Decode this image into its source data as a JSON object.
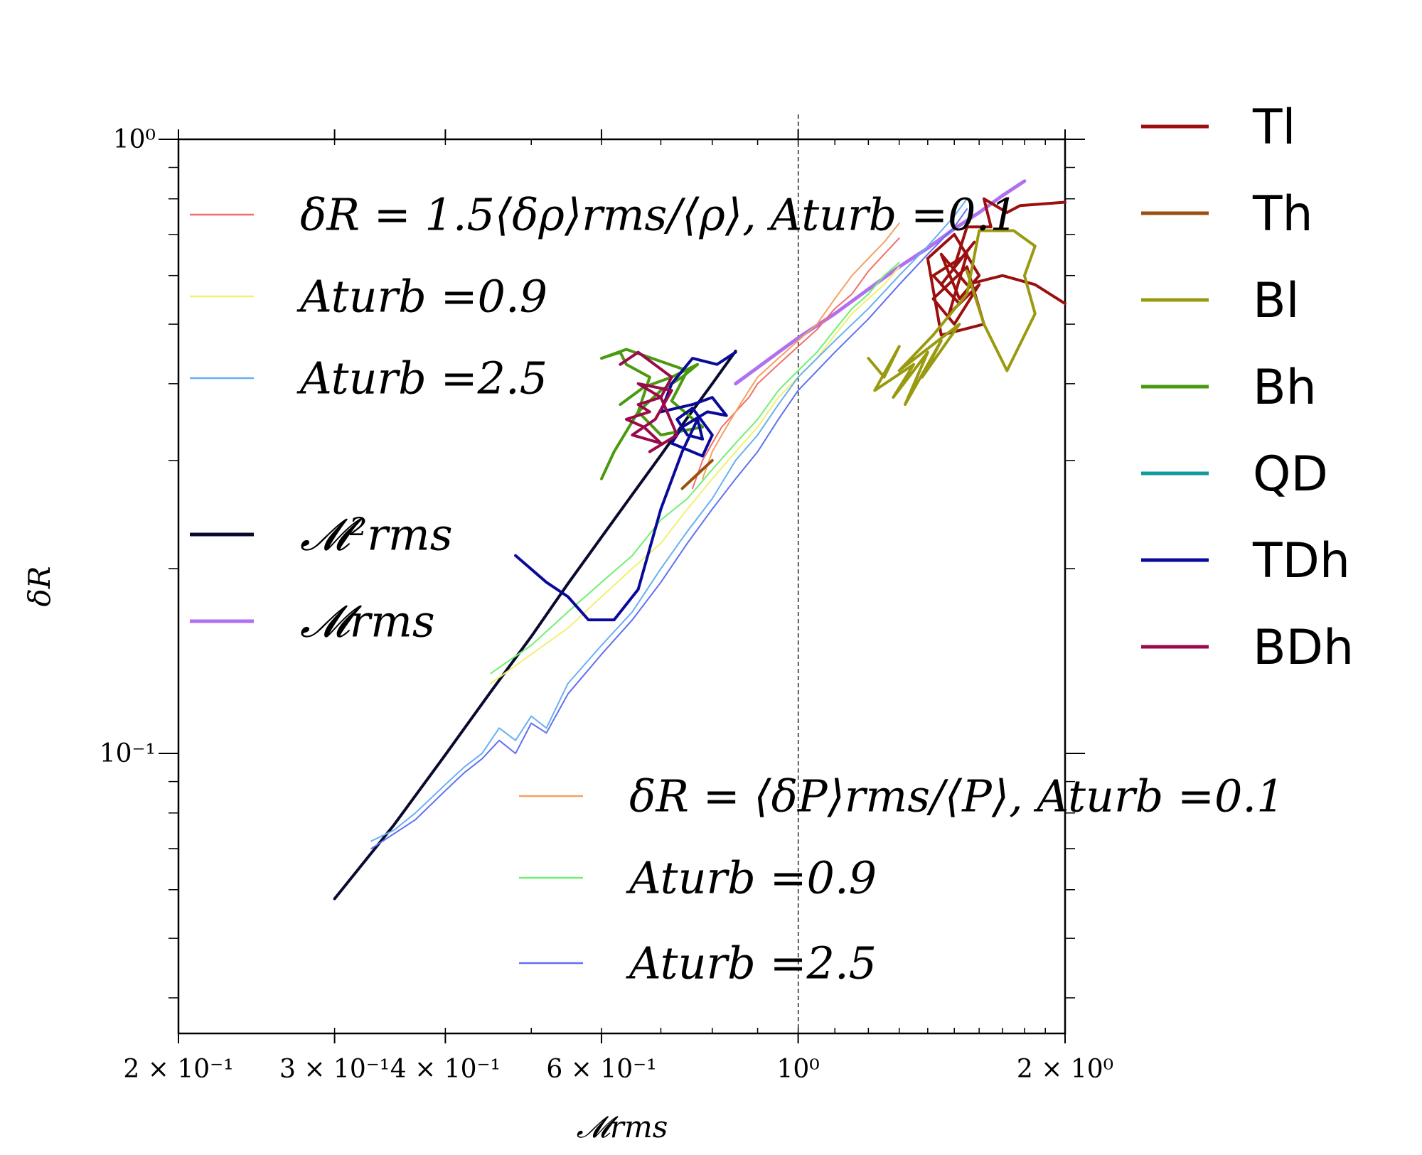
{
  "chart_data": {
    "type": "line",
    "xlabel": "𝓜rms",
    "ylabel": "δR",
    "xscale": "log",
    "yscale": "log",
    "xlim": [
      0.2,
      2.0
    ],
    "ylim": [
      0.035,
      1.0
    ],
    "grid": false,
    "x_tick_labels": [
      {
        "x": 0.2,
        "label": "2 × 10⁻¹"
      },
      {
        "x": 0.3,
        "label": "3 × 10⁻¹"
      },
      {
        "x": 0.4,
        "label": "4 × 10⁻¹"
      },
      {
        "x": 0.6,
        "label": "6 × 10⁻¹"
      },
      {
        "x": 1.0,
        "label": "10⁰"
      },
      {
        "x": 2.0,
        "label": "2 × 10⁰"
      }
    ],
    "y_tick_labels": [
      {
        "y": 1.0,
        "label": "10⁰"
      },
      {
        "y": 0.1,
        "label": "10⁻¹"
      }
    ],
    "reference_line_x": 1.0,
    "legend_left_upper": [
      {
        "label": "δR = 1.5⟨δρ⟩rms/⟨ρ⟩, Aturb =0.1",
        "color": "#f07068"
      },
      {
        "label": "Aturb =0.9",
        "color": "#f2f070"
      },
      {
        "label": "Aturb =2.5",
        "color": "#68b0f0"
      },
      {
        "label": "𝓜²rms",
        "color": "#0a0a30"
      },
      {
        "label": "𝓜rms",
        "color": "#b070f0"
      }
    ],
    "legend_left_lower": [
      {
        "label": "δR = ⟨δP⟩rms/⟨P⟩, Aturb =0.1",
        "color": "#f5a060"
      },
      {
        "label": "Aturb =0.9",
        "color": "#70f070"
      },
      {
        "label": "Aturb =2.5",
        "color": "#6070f0"
      }
    ],
    "legend_right": [
      {
        "label": "Tl",
        "color": "#9b0f0f"
      },
      {
        "label": "Th",
        "color": "#9a4f0f"
      },
      {
        "label": "Bl",
        "color": "#9a9a10"
      },
      {
        "label": "Bh",
        "color": "#4a9a10"
      },
      {
        "label": "QD",
        "color": "#109a9a"
      },
      {
        "label": "TDh",
        "color": "#0a0a9a"
      },
      {
        "label": "BDh",
        "color": "#9a0a4a"
      }
    ],
    "series": [
      {
        "name": "𝓜²rms",
        "color": "#0a0a30",
        "width": 4,
        "x": [
          0.3,
          0.35,
          0.4,
          0.45,
          0.5,
          0.55,
          0.6,
          0.65,
          0.7,
          0.75,
          0.8,
          0.85
        ],
        "y": [
          0.058,
          0.0765,
          0.0995,
          0.126,
          0.155,
          0.189,
          0.225,
          0.264,
          0.306,
          0.352,
          0.4,
          0.452
        ]
      },
      {
        "name": "𝓜rms",
        "color": "#b070f0",
        "width": 5,
        "x": [
          0.85,
          0.9,
          0.95,
          1.0,
          1.1,
          1.2,
          1.3,
          1.4,
          1.5,
          1.6,
          1.7,
          1.8
        ],
        "y": [
          0.4,
          0.425,
          0.45,
          0.475,
          0.52,
          0.57,
          0.62,
          0.665,
          0.715,
          0.76,
          0.81,
          0.855
        ]
      },
      {
        "name": "ρ, Aturb =0.1",
        "color": "#f07068",
        "width": 2,
        "x": [
          0.76,
          0.78,
          0.8,
          0.82,
          0.85,
          0.88,
          0.9,
          0.95,
          1.0,
          1.05,
          1.1,
          1.15,
          1.2,
          1.25,
          1.3
        ],
        "y": [
          0.27,
          0.3,
          0.32,
          0.34,
          0.36,
          0.38,
          0.4,
          0.43,
          0.46,
          0.49,
          0.53,
          0.56,
          0.61,
          0.65,
          0.69
        ]
      },
      {
        "name": "ρ, Aturb =0.9",
        "color": "#f2f070",
        "width": 2,
        "x": [
          0.45,
          0.5,
          0.55,
          0.6,
          0.65,
          0.7,
          0.75,
          0.8,
          0.85,
          0.9,
          0.95,
          1.0,
          1.05,
          1.1,
          1.15,
          1.2,
          1.25,
          1.3
        ],
        "y": [
          0.13,
          0.145,
          0.16,
          0.18,
          0.2,
          0.22,
          0.25,
          0.28,
          0.31,
          0.34,
          0.38,
          0.41,
          0.44,
          0.48,
          0.52,
          0.55,
          0.58,
          0.62
        ]
      },
      {
        "name": "ρ, Aturb =2.5",
        "color": "#68b0f0",
        "width": 2,
        "x": [
          0.33,
          0.35,
          0.37,
          0.4,
          0.42,
          0.44,
          0.46,
          0.48,
          0.5,
          0.52,
          0.55,
          0.6,
          0.65,
          0.7,
          0.75,
          0.8,
          0.85,
          0.9,
          0.95,
          1.0,
          1.1,
          1.2,
          1.3,
          1.4,
          1.5,
          1.55
        ],
        "y": [
          0.072,
          0.075,
          0.08,
          0.089,
          0.095,
          0.1,
          0.11,
          0.105,
          0.115,
          0.11,
          0.13,
          0.15,
          0.17,
          0.2,
          0.23,
          0.26,
          0.3,
          0.33,
          0.37,
          0.41,
          0.47,
          0.53,
          0.6,
          0.67,
          0.75,
          0.8
        ]
      },
      {
        "name": "P, Aturb =0.1",
        "color": "#f5a060",
        "width": 2,
        "x": [
          0.78,
          0.8,
          0.82,
          0.85,
          0.88,
          0.9,
          0.95,
          1.0,
          1.05,
          1.1,
          1.15,
          1.2,
          1.25,
          1.3
        ],
        "y": [
          0.28,
          0.31,
          0.33,
          0.36,
          0.39,
          0.41,
          0.44,
          0.47,
          0.5,
          0.55,
          0.6,
          0.64,
          0.68,
          0.73
        ]
      },
      {
        "name": "P, Aturb =0.9",
        "color": "#70f070",
        "width": 2,
        "x": [
          0.45,
          0.5,
          0.55,
          0.6,
          0.65,
          0.7,
          0.75,
          0.8,
          0.85,
          0.9,
          0.95,
          1.0,
          1.05,
          1.1,
          1.15,
          1.2,
          1.25,
          1.3
        ],
        "y": [
          0.135,
          0.15,
          0.17,
          0.19,
          0.21,
          0.24,
          0.26,
          0.29,
          0.32,
          0.35,
          0.39,
          0.42,
          0.45,
          0.49,
          0.53,
          0.56,
          0.6,
          0.63
        ]
      },
      {
        "name": "P, Aturb =2.5",
        "color": "#6070f0",
        "width": 2,
        "x": [
          0.33,
          0.35,
          0.37,
          0.4,
          0.42,
          0.44,
          0.46,
          0.48,
          0.5,
          0.52,
          0.55,
          0.6,
          0.65,
          0.7,
          0.75,
          0.8,
          0.85,
          0.9,
          0.95,
          1.0,
          1.1,
          1.2,
          1.3,
          1.4,
          1.5,
          1.55
        ],
        "y": [
          0.07,
          0.074,
          0.078,
          0.087,
          0.093,
          0.098,
          0.105,
          0.1,
          0.112,
          0.108,
          0.125,
          0.145,
          0.165,
          0.19,
          0.22,
          0.25,
          0.28,
          0.31,
          0.35,
          0.39,
          0.45,
          0.51,
          0.58,
          0.65,
          0.72,
          0.77
        ]
      },
      {
        "name": "Tl",
        "color": "#9b0f0f",
        "width": 4,
        "x": [
          2.0,
          1.78,
          1.72,
          1.62,
          1.65,
          1.55,
          1.5,
          1.58,
          1.45,
          1.52,
          1.42,
          1.55,
          1.48,
          1.6,
          1.5,
          1.42,
          1.55,
          1.62,
          1.45,
          1.4,
          1.5,
          1.6,
          1.52,
          1.45,
          1.55,
          1.7,
          1.85,
          2.0
        ],
        "y": [
          0.79,
          0.78,
          0.76,
          0.8,
          0.72,
          0.72,
          0.62,
          0.68,
          0.58,
          0.54,
          0.6,
          0.65,
          0.52,
          0.58,
          0.5,
          0.55,
          0.62,
          0.5,
          0.48,
          0.64,
          0.7,
          0.6,
          0.55,
          0.65,
          0.58,
          0.6,
          0.58,
          0.54
        ]
      },
      {
        "name": "Th",
        "color": "#9a4f0f",
        "width": 4,
        "x": [
          0.74,
          0.77,
          0.8
        ],
        "y": [
          0.27,
          0.285,
          0.3
        ]
      },
      {
        "name": "Bl",
        "color": "#9a9a10",
        "width": 4,
        "x": [
          1.2,
          1.25,
          1.3,
          1.22,
          1.35,
          1.28,
          1.4,
          1.32,
          1.45,
          1.38,
          1.52,
          1.3,
          1.42,
          1.55,
          1.6,
          1.75,
          1.85,
          1.8,
          1.85,
          1.72,
          1.62,
          1.55
        ],
        "y": [
          0.44,
          0.41,
          0.46,
          0.39,
          0.43,
          0.38,
          0.45,
          0.37,
          0.47,
          0.41,
          0.5,
          0.42,
          0.48,
          0.56,
          0.71,
          0.71,
          0.67,
          0.6,
          0.52,
          0.42,
          0.5,
          0.61
        ]
      },
      {
        "name": "Bh",
        "color": "#4a9a10",
        "width": 4,
        "x": [
          0.6,
          0.62,
          0.66,
          0.68,
          0.64,
          0.63,
          0.6,
          0.64,
          0.75,
          0.72,
          0.78,
          0.7,
          0.66,
          0.7,
          0.74,
          0.77,
          0.72,
          0.67,
          0.63
        ],
        "y": [
          0.28,
          0.31,
          0.36,
          0.41,
          0.43,
          0.45,
          0.44,
          0.455,
          0.42,
          0.375,
          0.34,
          0.33,
          0.36,
          0.39,
          0.41,
          0.43,
          0.41,
          0.395,
          0.37
        ]
      },
      {
        "name": "TDh",
        "color": "#0a0a9a",
        "width": 4,
        "x": [
          0.48,
          0.52,
          0.55,
          0.58,
          0.62,
          0.66,
          0.7,
          0.74,
          0.77,
          0.78,
          0.75,
          0.73,
          0.76,
          0.8,
          0.78,
          0.72,
          0.74,
          0.79,
          0.83,
          0.8,
          0.76,
          0.7,
          0.72,
          0.76,
          0.81,
          0.85
        ],
        "y": [
          0.21,
          0.19,
          0.18,
          0.165,
          0.165,
          0.185,
          0.25,
          0.31,
          0.35,
          0.325,
          0.33,
          0.35,
          0.365,
          0.33,
          0.305,
          0.32,
          0.34,
          0.36,
          0.355,
          0.38,
          0.37,
          0.36,
          0.4,
          0.44,
          0.43,
          0.45
        ]
      },
      {
        "name": "BDh",
        "color": "#9a0a4a",
        "width": 4,
        "x": [
          0.63,
          0.66,
          0.72,
          0.7,
          0.66,
          0.68,
          0.64,
          0.67,
          0.7,
          0.65,
          0.69,
          0.72,
          0.66,
          0.7,
          0.73,
          0.68
        ],
        "y": [
          0.43,
          0.45,
          0.41,
          0.38,
          0.37,
          0.36,
          0.35,
          0.34,
          0.32,
          0.33,
          0.35,
          0.39,
          0.4,
          0.38,
          0.33,
          0.31
        ]
      }
    ]
  }
}
